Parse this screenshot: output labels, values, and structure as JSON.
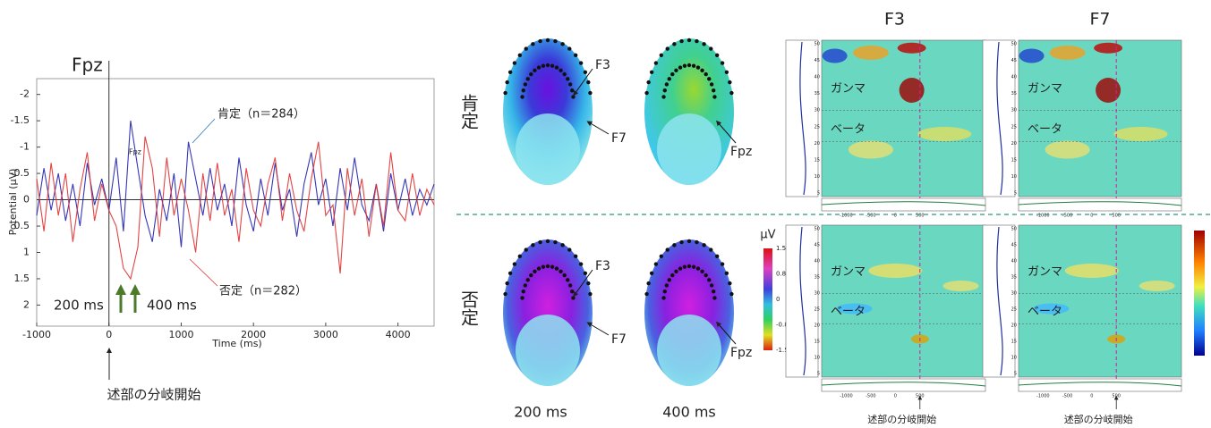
{
  "chart_data": {
    "type": "line",
    "title": "Fpz",
    "xlabel": "Time (ms)",
    "ylabel": "Potential (μV)",
    "x": [
      -1000,
      -900,
      -800,
      -700,
      -600,
      -500,
      -400,
      -300,
      -200,
      -100,
      0,
      100,
      200,
      300,
      400,
      500,
      600,
      700,
      800,
      900,
      1000,
      1100,
      1200,
      1300,
      1400,
      1500,
      1600,
      1700,
      1800,
      1900,
      2000,
      2100,
      2200,
      2300,
      2400,
      2500,
      2600,
      2700,
      2800,
      2900,
      3000,
      3100,
      3200,
      3300,
      3400,
      3500,
      3600,
      3700,
      3800,
      3900,
      4000,
      4100,
      4200,
      4300,
      4400,
      4500
    ],
    "series": [
      {
        "name": "肯定（n＝284）",
        "color": "#2020b0",
        "label_color": "#2e75b6",
        "values": [
          0.3,
          -0.6,
          0.2,
          -0.5,
          0.4,
          -0.3,
          0.5,
          -0.7,
          0.1,
          -0.4,
          0.2,
          -0.8,
          0.6,
          -1.5,
          -0.6,
          0.3,
          0.8,
          -0.2,
          0.4,
          -0.5,
          0.9,
          -1.1,
          -0.4,
          0.3,
          -0.6,
          0.2,
          -0.3,
          0.5,
          -0.8,
          0.1,
          0.6,
          -0.4,
          0.3,
          -0.7,
          0.2,
          -0.2,
          0.7,
          -0.3,
          -0.9,
          0.1,
          -0.4,
          0.5,
          -0.6,
          0.2,
          -0.8,
          0.1,
          0.4,
          -0.3,
          0.6,
          -0.5,
          0.2,
          -0.4,
          0.3,
          -0.2,
          0.1,
          -0.3
        ]
      },
      {
        "name": "否定（n＝282）",
        "color": "#e03030",
        "label_color": "#e03030",
        "values": [
          -0.4,
          0.6,
          -0.7,
          0.3,
          -0.5,
          0.8,
          -0.2,
          -0.9,
          0.4,
          -0.3,
          0.2,
          0.5,
          1.3,
          1.5,
          0.9,
          -1.2,
          -0.6,
          0.7,
          -0.8,
          0.3,
          -0.4,
          0.2,
          1.0,
          -0.5,
          0.4,
          -0.7,
          0.3,
          -0.2,
          0.8,
          -0.6,
          0.2,
          0.5,
          -0.3,
          -0.8,
          0.4,
          -0.5,
          0.2,
          0.6,
          -0.4,
          -1.1,
          0.3,
          0.1,
          1.4,
          -0.6,
          0.3,
          -0.4,
          0.7,
          -0.3,
          0.5,
          -0.9,
          0.2,
          0.4,
          -0.5,
          0.3,
          -0.2,
          0.1
        ]
      }
    ],
    "xlim": [
      -1000,
      4500
    ],
    "xticks": [
      -1000,
      0,
      1000,
      2000,
      3000,
      4000
    ],
    "ylim": [
      -2.3,
      2.4
    ],
    "yticks": [
      -2,
      -1.5,
      -1,
      -0.5,
      0,
      0.5,
      1,
      1.5,
      2
    ],
    "y_inverted": true,
    "annotations": {
      "early": "200 ms",
      "late": "400 ms",
      "onset": "述部の分岐開始"
    }
  },
  "topomaps": {
    "conditions": [
      "肯定",
      "否定"
    ],
    "times": [
      "200 ms",
      "400 ms"
    ],
    "electrodes_left": [
      "F3",
      "F7"
    ],
    "electrode_right": "Fpz"
  },
  "colorbar": {
    "unit": "μV",
    "ticks": [
      "1.5",
      "0.8",
      "0",
      "-0.8",
      "-1.5"
    ]
  },
  "timefreq": {
    "channels": [
      "F3",
      "F7"
    ],
    "bands": [
      "ガンマ",
      "ベータ"
    ],
    "onset_label": "述部の分岐開始",
    "freq_ticks": [
      "50",
      "45",
      "40",
      "35",
      "30",
      "25",
      "20",
      "15",
      "10",
      "5"
    ],
    "time_ticks": [
      "-1000",
      "-500",
      "0",
      "500"
    ]
  }
}
